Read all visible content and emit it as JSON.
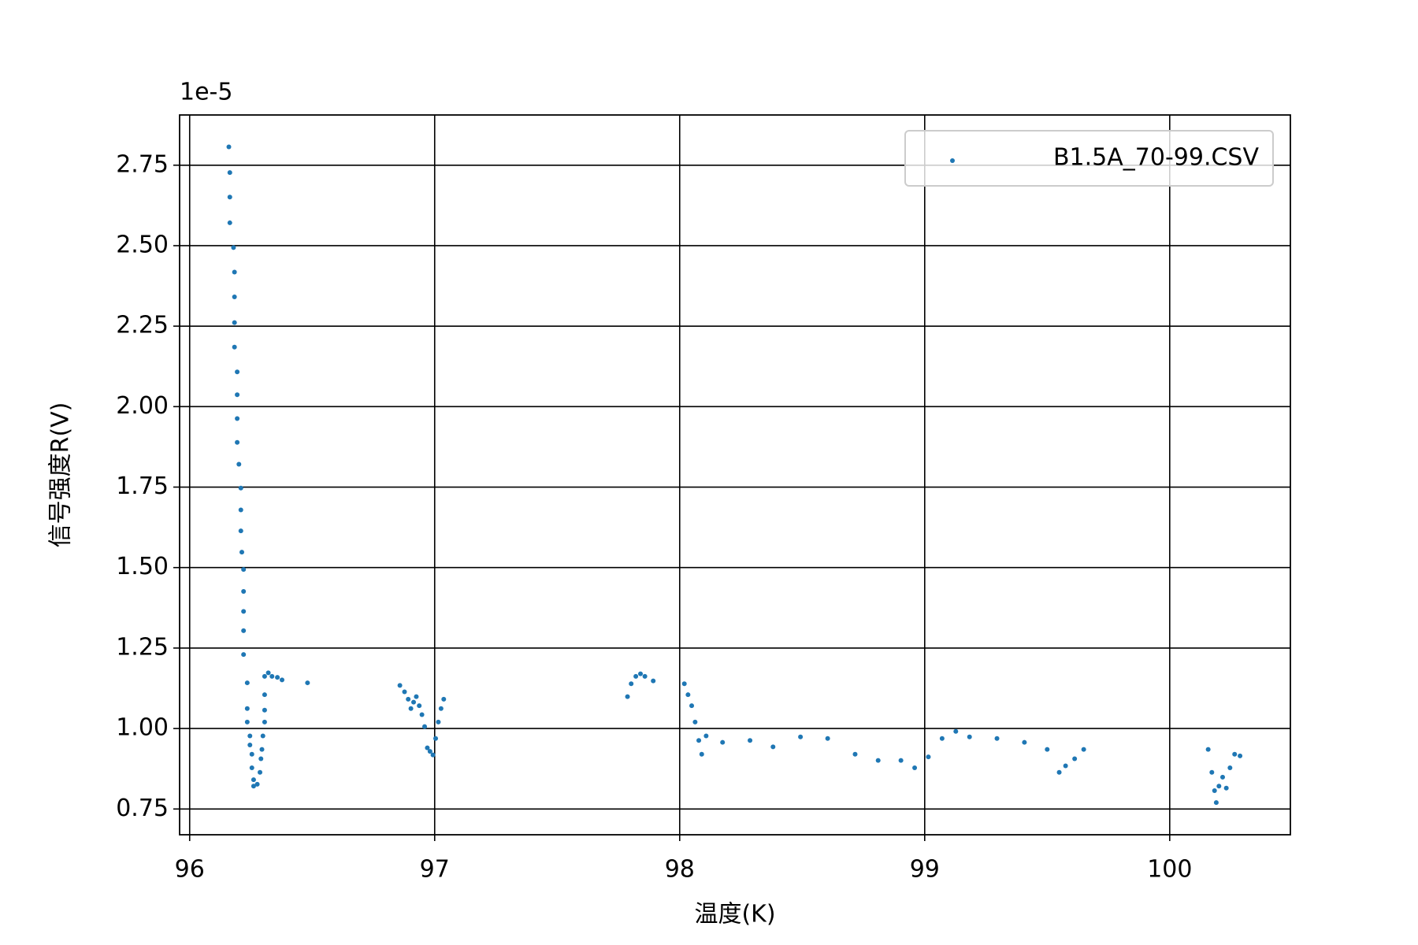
{
  "chart_data": {
    "type": "scatter",
    "xlabel": "温度(K)",
    "ylabel": "信号强度R(V)",
    "offset_text": "1e-5",
    "xlim": [
      95.959,
      100.4925
    ],
    "ylim": [
      0.67,
      2.906
    ],
    "xticks": [
      96,
      97,
      98,
      99,
      100
    ],
    "yticks": [
      0.75,
      {
        "value": 1,
        "label": "1.00"
      },
      1.25,
      {
        "value": 1.5,
        "label": "1.50"
      },
      1.75,
      {
        "value": 2,
        "label": "2.00"
      },
      2.25,
      {
        "value": 2.5,
        "label": "2.50"
      },
      2.75
    ],
    "grid": true,
    "legend": "upper right",
    "x": [
      96.16,
      96.164,
      96.164,
      96.164,
      96.179,
      96.183,
      96.183,
      96.183,
      96.183,
      96.194,
      96.194,
      96.194,
      96.194,
      96.201,
      96.209,
      96.209,
      96.209,
      96.213,
      96.22,
      96.22,
      96.22,
      96.22,
      96.22,
      96.235,
      96.235,
      96.235,
      96.246,
      96.246,
      96.254,
      96.254,
      96.261,
      96.261,
      96.276,
      96.287,
      96.291,
      96.295,
      96.299,
      96.306,
      96.306,
      96.306,
      96.306,
      96.321,
      96.336,
      96.358,
      96.377,
      96.481,
      96.858,
      96.877,
      96.892,
      96.903,
      96.914,
      96.925,
      96.937,
      96.948,
      96.959,
      96.97,
      96.981,
      96.993,
      97.004,
      97.015,
      97.026,
      97.037,
      97.787,
      97.802,
      97.821,
      97.84,
      97.858,
      97.892,
      98.019,
      98.034,
      98.049,
      98.063,
      98.078,
      98.09,
      98.108,
      98.175,
      98.287,
      98.381,
      98.493,
      98.604,
      98.716,
      98.81,
      98.903,
      98.959,
      99.015,
      99.071,
      99.127,
      99.183,
      99.295,
      99.407,
      99.5,
      99.549,
      99.575,
      99.612,
      99.649,
      100.157,
      100.172,
      100.183,
      100.19,
      100.201,
      100.216,
      100.231,
      100.246,
      100.265,
      100.287
    ],
    "series": [
      {
        "name": "B1.5A_70-99.CSV",
        "color": "#1f77b4",
        "values": [
          2.807,
          2.727,
          2.651,
          2.571,
          2.494,
          2.418,
          2.341,
          2.261,
          2.185,
          2.108,
          2.037,
          1.963,
          1.889,
          1.821,
          1.747,
          1.679,
          1.614,
          1.548,
          1.494,
          1.426,
          1.364,
          1.304,
          1.23,
          1.142,
          1.062,
          1.02,
          0.977,
          0.949,
          0.92,
          0.878,
          0.841,
          0.821,
          0.827,
          0.864,
          0.906,
          0.935,
          0.977,
          1.02,
          1.057,
          1.105,
          1.162,
          1.173,
          1.162,
          1.159,
          1.151,
          1.142,
          1.134,
          1.114,
          1.091,
          1.062,
          1.082,
          1.099,
          1.071,
          1.043,
          1.006,
          0.94,
          0.929,
          0.918,
          0.969,
          1.02,
          1.062,
          1.091,
          1.099,
          1.139,
          1.162,
          1.17,
          1.162,
          1.148,
          1.139,
          1.105,
          1.071,
          1.02,
          0.963,
          0.92,
          0.977,
          0.957,
          0.963,
          0.943,
          0.974,
          0.969,
          0.92,
          0.901,
          0.901,
          0.878,
          0.912,
          0.969,
          0.991,
          0.974,
          0.969,
          0.957,
          0.935,
          0.864,
          0.884,
          0.906,
          0.935,
          0.935,
          0.864,
          0.807,
          0.77,
          0.821,
          0.849,
          0.815,
          0.878,
          0.92,
          0.915
        ]
      }
    ]
  }
}
